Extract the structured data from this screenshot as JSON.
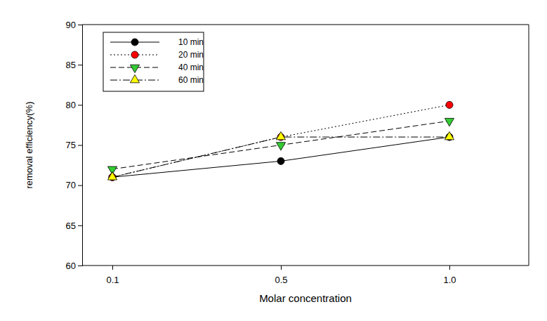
{
  "chart_data": {
    "type": "line",
    "x_label": "Molar concentration",
    "y_label": "removal efficiency(%)",
    "categories": [
      "0.1",
      "0.5",
      "1.0"
    ],
    "series": [
      {
        "name": "10 min",
        "color": "#000000",
        "marker": "circle",
        "line_style": "solid",
        "values": [
          71,
          73,
          76
        ]
      },
      {
        "name": "20 min",
        "color": "#ff0000",
        "marker": "circle",
        "line_style": "dotted",
        "values": [
          71,
          76,
          80
        ]
      },
      {
        "name": "40 min",
        "color": "#33cc33",
        "marker": "triangle-down",
        "line_style": "dashed",
        "values": [
          72,
          75,
          78
        ]
      },
      {
        "name": "60 min",
        "color": "#ffff00",
        "marker": "triangle-up",
        "line_style": "dashdot",
        "values": [
          71,
          76,
          76
        ]
      }
    ],
    "ylim": [
      60,
      90
    ],
    "yticks": [
      60,
      65,
      70,
      75,
      80,
      85,
      90
    ],
    "grid": false,
    "legend": "upper left"
  }
}
